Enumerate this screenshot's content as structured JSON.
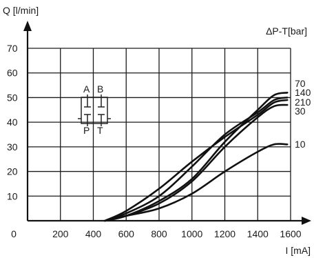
{
  "chart_data": {
    "type": "line",
    "xlabel": "I [mA]",
    "ylabel": "Q [l/min]",
    "legend_title": "ΔP-T[bar]",
    "xlim": [
      0,
      1600
    ],
    "ylim": [
      0,
      70
    ],
    "x_ticks": [
      "0",
      "200",
      "400",
      "600",
      "800",
      "1000",
      "1200",
      "1400",
      "1600"
    ],
    "y_ticks": [
      "10",
      "20",
      "30",
      "40",
      "50",
      "60",
      "70"
    ],
    "grid": true,
    "legend_placement": "right",
    "valve_symbol": {
      "ports": [
        "A",
        "B",
        "P",
        "T"
      ]
    },
    "series": [
      {
        "name": "70",
        "x": [
          470,
          600,
          800,
          1000,
          1200,
          1400,
          1500,
          1580
        ],
        "y": [
          0,
          2,
          8,
          17,
          32,
          45,
          51,
          52
        ]
      },
      {
        "name": "140",
        "x": [
          470,
          600,
          800,
          1000,
          1200,
          1400,
          1500,
          1580
        ],
        "y": [
          0,
          3,
          10,
          22,
          35,
          44,
          49,
          50
        ]
      },
      {
        "name": "210",
        "x": [
          470,
          600,
          800,
          1000,
          1200,
          1400,
          1500,
          1580
        ],
        "y": [
          0,
          4,
          13,
          24,
          34,
          43,
          48,
          49
        ]
      },
      {
        "name": "30",
        "x": [
          470,
          600,
          800,
          1000,
          1200,
          1400,
          1500,
          1580
        ],
        "y": [
          0,
          2,
          7,
          16,
          30,
          42,
          46.5,
          47
        ]
      },
      {
        "name": "10",
        "x": [
          470,
          600,
          800,
          1000,
          1200,
          1400,
          1500,
          1580
        ],
        "y": [
          0,
          2,
          5,
          11,
          20,
          28,
          31,
          31
        ]
      }
    ]
  }
}
